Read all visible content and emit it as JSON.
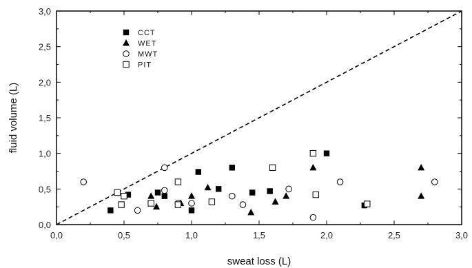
{
  "chart_data": {
    "type": "scatter",
    "xlabel": "sweat loss (L)",
    "ylabel": "fluid volume (L)",
    "xlim": [
      0,
      3.0
    ],
    "ylim": [
      0,
      3.0
    ],
    "x_ticks": [
      "0,0",
      "0,5",
      "1,0",
      "1,5",
      "2,0",
      "2,5",
      "3,0"
    ],
    "y_ticks": [
      "0,0",
      "0,5",
      "1,0",
      "1,5",
      "2,0",
      "2,5",
      "3,0"
    ],
    "reference_line": {
      "style": "dashed",
      "from": [
        0,
        0
      ],
      "to": [
        3.0,
        3.0
      ]
    },
    "legend_position": "top-left",
    "series": [
      {
        "name": "CCT",
        "marker": "filled-square",
        "points": [
          [
            0.4,
            0.2
          ],
          [
            0.53,
            0.42
          ],
          [
            0.75,
            0.45
          ],
          [
            0.8,
            0.4
          ],
          [
            1.0,
            0.2
          ],
          [
            1.05,
            0.74
          ],
          [
            1.2,
            0.5
          ],
          [
            1.3,
            0.8
          ],
          [
            1.45,
            0.45
          ],
          [
            1.58,
            0.47
          ],
          [
            2.0,
            1.0
          ],
          [
            2.28,
            0.27
          ]
        ]
      },
      {
        "name": "WET",
        "marker": "filled-triangle",
        "points": [
          [
            0.7,
            0.4
          ],
          [
            0.74,
            0.25
          ],
          [
            0.92,
            0.3
          ],
          [
            1.0,
            0.4
          ],
          [
            1.12,
            0.52
          ],
          [
            1.44,
            0.17
          ],
          [
            1.62,
            0.32
          ],
          [
            1.7,
            0.4
          ],
          [
            1.9,
            0.8
          ],
          [
            2.7,
            0.8
          ],
          [
            2.7,
            0.4
          ]
        ]
      },
      {
        "name": "MWT",
        "marker": "open-circle",
        "points": [
          [
            0.2,
            0.6
          ],
          [
            0.6,
            0.2
          ],
          [
            0.8,
            0.8
          ],
          [
            0.8,
            0.48
          ],
          [
            0.9,
            0.3
          ],
          [
            1.0,
            0.3
          ],
          [
            1.3,
            0.4
          ],
          [
            1.38,
            0.28
          ],
          [
            1.72,
            0.5
          ],
          [
            1.9,
            0.1
          ],
          [
            2.1,
            0.6
          ],
          [
            2.8,
            0.6
          ]
        ]
      },
      {
        "name": "PIT",
        "marker": "open-square",
        "points": [
          [
            0.45,
            0.45
          ],
          [
            0.48,
            0.28
          ],
          [
            0.5,
            0.4
          ],
          [
            0.7,
            0.3
          ],
          [
            0.9,
            0.6
          ],
          [
            0.9,
            0.28
          ],
          [
            1.15,
            0.32
          ],
          [
            1.6,
            0.8
          ],
          [
            1.9,
            1.0
          ],
          [
            1.92,
            0.42
          ],
          [
            2.3,
            0.29
          ]
        ]
      }
    ]
  }
}
